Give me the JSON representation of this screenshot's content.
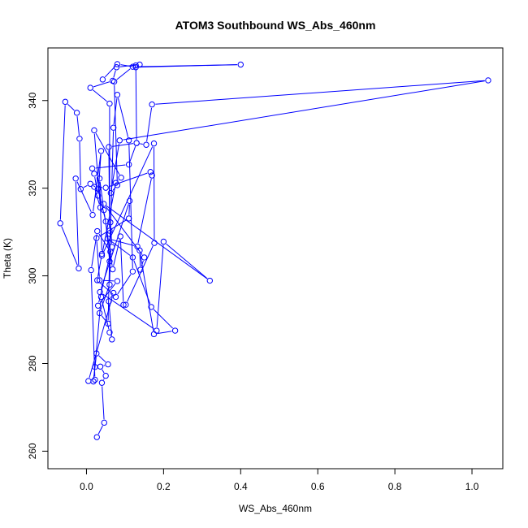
{
  "chart_data": {
    "type": "line",
    "title": "ATOM3 Southbound WS_Abs_460nm",
    "xlabel": "WS_Abs_460nm",
    "ylabel": "Theta (K)",
    "xlim": [
      -0.1,
      1.08
    ],
    "ylim": [
      256,
      352
    ],
    "xticks": [
      0.0,
      0.2,
      0.4,
      0.6,
      0.8,
      1.0
    ],
    "xtick_labels": [
      "0.0",
      "0.2",
      "0.4",
      "0.6",
      "0.8",
      "1.0"
    ],
    "yticks": [
      260,
      280,
      300,
      320,
      340
    ],
    "ytick_labels": [
      "260",
      "280",
      "300",
      "320",
      "340"
    ],
    "grid": false,
    "legend": "none",
    "series_color": "#0000ff",
    "markers": "open-circle",
    "series": [
      {
        "x": [
          0.027,
          0.046,
          0.04,
          0.05,
          0.036,
          0.056,
          0.026,
          0.018,
          0.022,
          0.038,
          0.06,
          0.066,
          0.058,
          0.07,
          0.005,
          0.022,
          0.012,
          0.028,
          0.062,
          0.06,
          0.034,
          0.056,
          0.062,
          0.066,
          0.03,
          0.08,
          0.034,
          0.026,
          0.11,
          0.112,
          0.035,
          0.182,
          0.2,
          0.32,
          0.045,
          0.15,
          0.14,
          0.138,
          0.175,
          0.23,
          0.168,
          0.12,
          0.055,
          0.132,
          0.17,
          0.166,
          0.05,
          0.02,
          0.036,
          0.02,
          0.09,
          0.076,
          0.04,
          0.175,
          0.176,
          0.102,
          0.096,
          0.088,
          0.068,
          0.045,
          0.034,
          0.04,
          0.028,
          0.076,
          0.12,
          0.11,
          0.08,
          0.07,
          0.06,
          0.05,
          0.03,
          0.01,
          -0.015,
          -0.018,
          -0.025,
          -0.055,
          -0.068,
          -0.02,
          -0.028,
          0.016,
          0.038,
          0.03,
          0.02,
          0.015,
          0.11,
          0.13,
          0.058,
          0.06,
          0.06,
          0.01,
          0.068,
          0.078,
          0.138,
          0.128,
          0.13,
          0.155,
          0.17,
          1.042,
          0.086,
          0.063,
          0.08,
          0.072,
          0.12,
          0.4,
          0.128,
          0.08,
          0.042
        ],
        "y": [
          263.2,
          266.5,
          275.6,
          277.2,
          279.3,
          279.8,
          282.3,
          275.9,
          279.2,
          295.2,
          287.1,
          285.5,
          294.2,
          296.1,
          276.0,
          276.3,
          301.3,
          310.2,
          305.5,
          298.0,
          291.5,
          289.1,
          312.2,
          306.6,
          293.2,
          298.8,
          299.0,
          308.6,
          313.1,
          317.1,
          296.3,
          287.5,
          307.8,
          298.9,
          316.4,
          304.2,
          301.4,
          305.8,
          286.7,
          287.5,
          292.9,
          304.2,
          308.5,
          306.7,
          322.9,
          323.7,
          320.1,
          320.3,
          315.6,
          333.2,
          322.4,
          321.2,
          304.6,
          330.2,
          307.5,
          293.4,
          293.4,
          309.0,
          301.5,
          315.0,
          322.2,
          305.0,
          299.0,
          295.2,
          301.0,
          330.9,
          341.3,
          333.8,
          303.3,
          312.4,
          319.9,
          321.0,
          319.8,
          331.3,
          337.2,
          339.7,
          312.0,
          301.7,
          322.2,
          313.9,
          328.5,
          318.3,
          323.3,
          324.5,
          325.4,
          330.3,
          329.4,
          310.3,
          339.3,
          342.9,
          344.5,
          347.6,
          348.2,
          348.0,
          330.3,
          329.9,
          339.1,
          344.6,
          330.9,
          318.9,
          320.7,
          344.3,
          347.7,
          348.2,
          347.6,
          348.3,
          344.8
        ]
      }
    ]
  }
}
